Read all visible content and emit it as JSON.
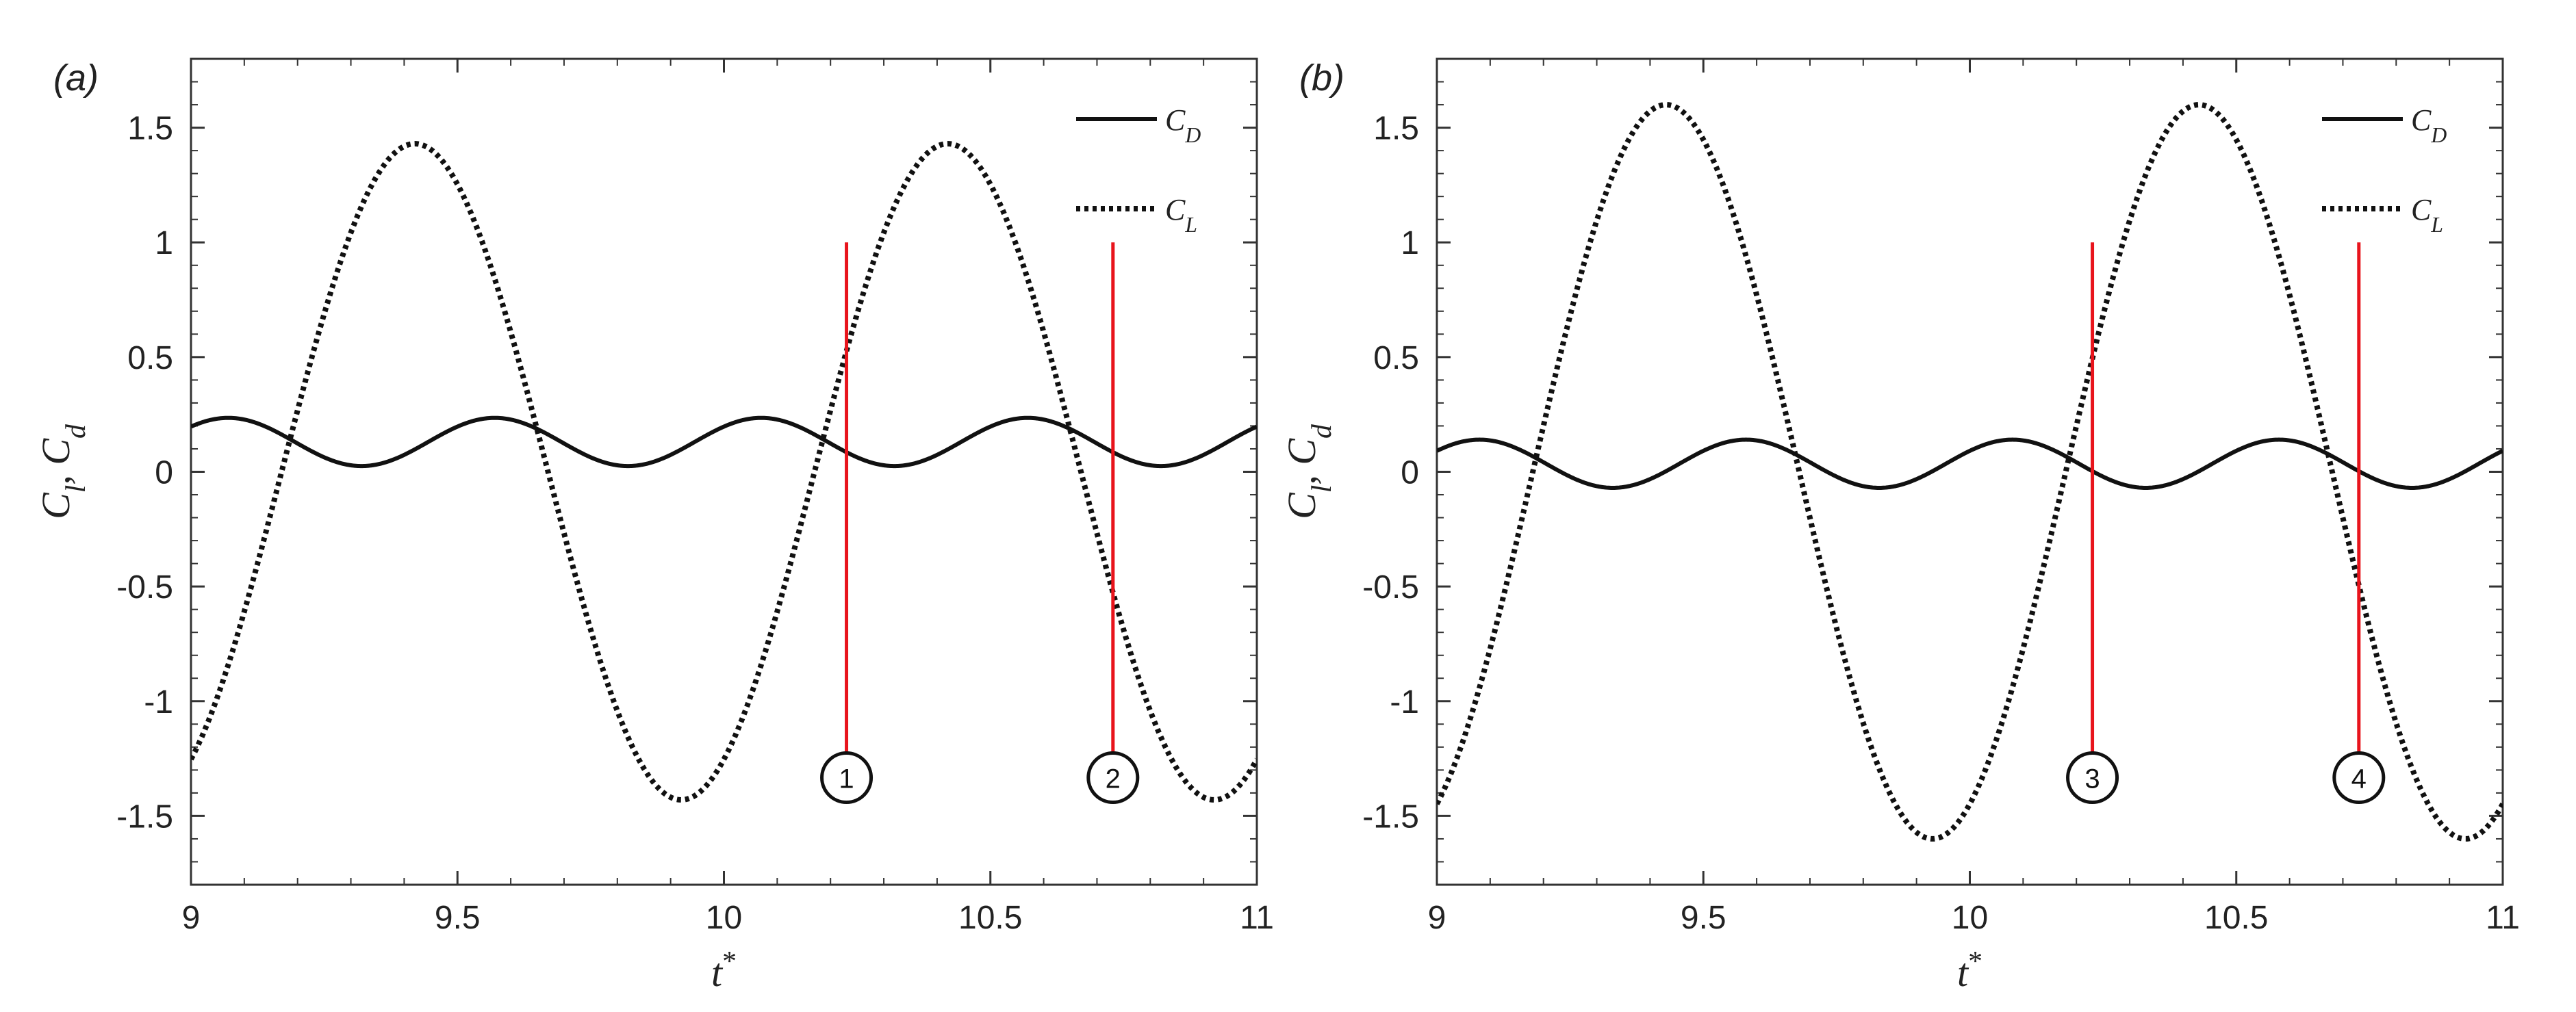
{
  "chart_data": [
    {
      "type": "line",
      "panel_label": "(a)",
      "xlabel": "t*",
      "ylabel": "C_l, C_d",
      "xlim": [
        9,
        11
      ],
      "ylim": [
        -1.8,
        1.8
      ],
      "x_ticks": [
        9,
        9.5,
        10,
        10.5,
        11
      ],
      "x_tick_labels": [
        "9",
        "9.5",
        "10",
        "10.5",
        "11"
      ],
      "y_ticks": [
        -1.5,
        -1,
        -0.5,
        0,
        0.5,
        1,
        1.5
      ],
      "y_tick_labels": [
        "-1.5",
        "-1",
        "-0.5",
        "0",
        "0.5",
        "1",
        "1.5"
      ],
      "legend_position": "top-right",
      "series": [
        {
          "name": "C_D",
          "style": "solid",
          "mean": 0.13,
          "amplitude": 0.105,
          "period": 0.5,
          "peak_at": 0.07
        },
        {
          "name": "C_L",
          "style": "dotted",
          "mean": 0,
          "amplitude": 1.43,
          "period": 1.0,
          "peak_at": 9.42
        }
      ],
      "markers": [
        {
          "label": "1",
          "x": 10.23,
          "y_top": 1.0,
          "y_bottom": -1.22,
          "color": "#e8141c"
        },
        {
          "label": "2",
          "x": 10.73,
          "y_top": 1.0,
          "y_bottom": -1.22,
          "color": "#e8141c"
        }
      ]
    },
    {
      "type": "line",
      "panel_label": "(b)",
      "xlabel": "t*",
      "ylabel": "C_l, C_d",
      "xlim": [
        9,
        11
      ],
      "ylim": [
        -1.8,
        1.8
      ],
      "x_ticks": [
        9,
        9.5,
        10,
        10.5,
        11
      ],
      "x_tick_labels": [
        "9",
        "9.5",
        "10",
        "10.5",
        "11"
      ],
      "y_ticks": [
        -1.5,
        -1,
        -0.5,
        0,
        0.5,
        1,
        1.5
      ],
      "y_tick_labels": [
        "-1.5",
        "-1",
        "-0.5",
        "0",
        "0.5",
        "1",
        "1.5"
      ],
      "legend_position": "top-right",
      "series": [
        {
          "name": "C_D",
          "style": "solid",
          "mean": 0.035,
          "amplitude": 0.105,
          "period": 0.5,
          "peak_at": 0.08
        },
        {
          "name": "C_L",
          "style": "dotted",
          "mean": 0,
          "amplitude": 1.6,
          "period": 1.0,
          "peak_at": 9.43
        }
      ],
      "markers": [
        {
          "label": "3",
          "x": 10.23,
          "y_top": 1.0,
          "y_bottom": -1.22,
          "color": "#e8141c"
        },
        {
          "label": "4",
          "x": 10.73,
          "y_top": 1.0,
          "y_bottom": -1.22,
          "color": "#e8141c"
        }
      ]
    }
  ]
}
